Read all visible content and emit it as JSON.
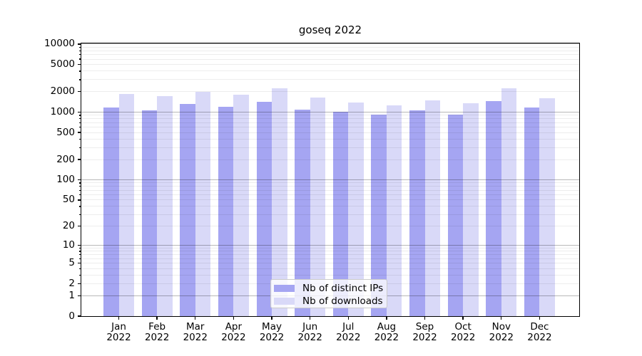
{
  "chart_data": {
    "type": "bar",
    "title": "goseq 2022",
    "categories": [
      "Jan",
      "Feb",
      "Mar",
      "Apr",
      "May",
      "Jun",
      "Jul",
      "Aug",
      "Sep",
      "Oct",
      "Nov",
      "Dec"
    ],
    "x_year_label": "2022",
    "series": [
      {
        "name": "Nb of distinct IPs",
        "color": "#a5a5f2",
        "values": [
          1175,
          1067,
          1314,
          1193,
          1402,
          1075,
          1007,
          915,
          1049,
          908,
          1446,
          1156
        ]
      },
      {
        "name": "Nb of downloads",
        "color": "#d9d9f8",
        "values": [
          1841,
          1712,
          1978,
          1784,
          2232,
          1632,
          1392,
          1242,
          1496,
          1336,
          2253,
          1593
        ]
      }
    ],
    "yscale": "log1p",
    "ylim": [
      0,
      10400
    ],
    "yticks": [
      0,
      1,
      2,
      5,
      10,
      20,
      50,
      100,
      200,
      500,
      1000,
      2000,
      5000,
      10000
    ],
    "grid": true,
    "legend_position": "lower center",
    "axis_color": "#000000",
    "grid_major_color": "#b8b8b8",
    "grid_minor_color": "#ededed"
  }
}
